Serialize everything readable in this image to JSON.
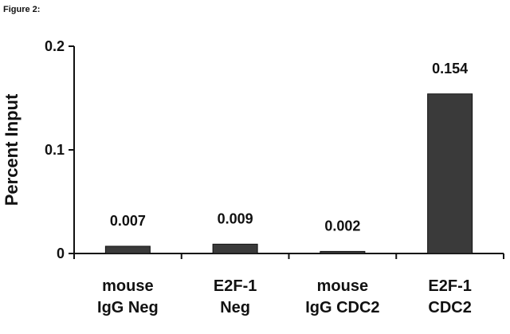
{
  "figure_label": "Figure 2:",
  "colors": {
    "bar": "#3a3a3a",
    "axis": "#111111"
  },
  "chart_data": {
    "type": "bar",
    "categories": [
      [
        "mouse",
        "IgG Neg"
      ],
      [
        "E2F-1",
        "Neg"
      ],
      [
        "mouse",
        "IgG CDC2"
      ],
      [
        "E2F-1",
        "CDC2"
      ]
    ],
    "values": [
      0.007,
      0.009,
      0.002,
      0.154
    ],
    "data_labels": [
      "0.007",
      "0.009",
      "0.002",
      "0.154"
    ],
    "ylabel": "Percent Input",
    "xlabel": "",
    "ylim": [
      0,
      0.2
    ],
    "yticks": [
      0,
      0.1,
      0.2
    ],
    "ytick_labels": [
      "0",
      "0.1",
      "0.2"
    ],
    "grid": false
  }
}
